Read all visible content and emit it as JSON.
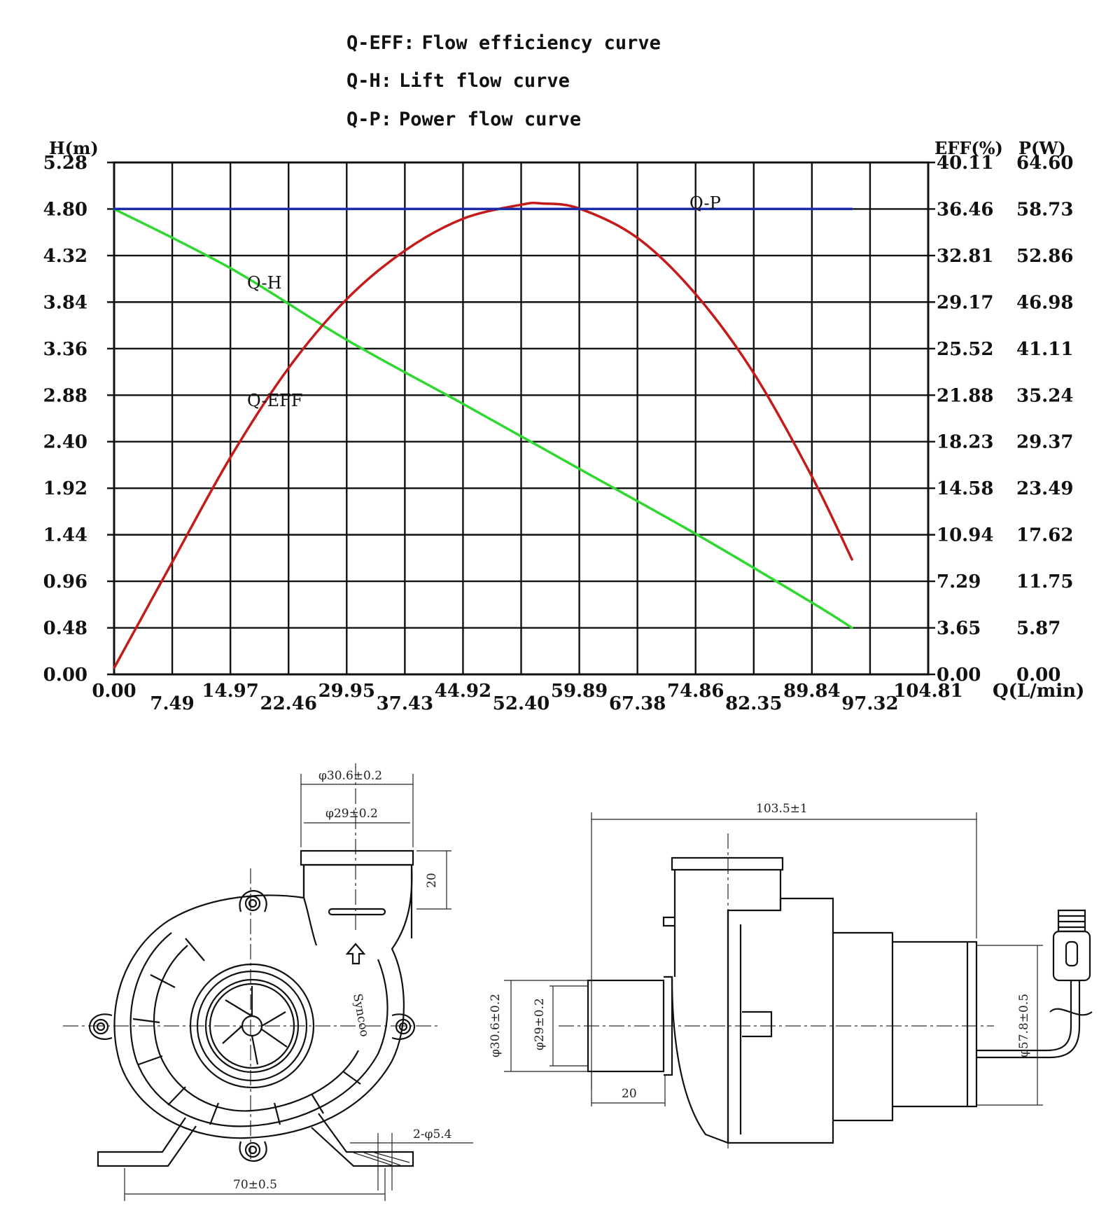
{
  "legend": [
    {
      "key": "Q-EFF",
      "sep": ":",
      "text": "Flow efficiency curve"
    },
    {
      "key": "Q-H",
      "sep": ":",
      "text": "Lift flow curve"
    },
    {
      "key": "Q-P",
      "sep": ":",
      "text": "Power flow curve"
    }
  ],
  "chart_data": {
    "type": "line",
    "xlabel": "Q(L/min)",
    "ylabel_left": "H(m)",
    "ylabel_right_1": "EFF(%)",
    "ylabel_right_2": "P(W)",
    "xlim": [
      0,
      104.81
    ],
    "ylim": [
      0,
      5.28
    ],
    "x_ticks": [
      "0.00",
      "7.49",
      "14.97",
      "22.46",
      "29.95",
      "37.43",
      "44.92",
      "52.40",
      "59.89",
      "67.38",
      "74.86",
      "82.35",
      "89.84",
      "97.32",
      "104.81"
    ],
    "y_ticks_left": [
      "0.00",
      "0.48",
      "0.96",
      "1.44",
      "1.92",
      "2.40",
      "2.88",
      "3.36",
      "3.84",
      "4.32",
      "4.80",
      "5.28"
    ],
    "y_ticks_eff": [
      "0.00",
      "3.65",
      "7.29",
      "10.94",
      "14.58",
      "18.23",
      "21.88",
      "25.52",
      "29.17",
      "32.81",
      "36.46",
      "40.11"
    ],
    "y_ticks_power": [
      "0.00",
      "5.87",
      "11.75",
      "17.62",
      "23.49",
      "29.37",
      "35.24",
      "41.11",
      "46.98",
      "52.86",
      "58.73",
      "64.60"
    ],
    "series": [
      {
        "name": "Q-H",
        "color": "#2ed82e",
        "axis": "H(m)",
        "x": [
          0,
          14.97,
          29.95,
          44.92,
          59.89,
          74.86,
          89.84,
          95.0
        ],
        "values": [
          4.8,
          4.19,
          3.45,
          2.79,
          2.12,
          1.45,
          0.74,
          0.48
        ]
      },
      {
        "name": "Q-EFF",
        "color": "#c41a1a",
        "axis": "EFF(%)",
        "x": [
          0,
          7.49,
          14.97,
          22.46,
          29.95,
          37.43,
          44.92,
          52.4,
          55.0,
          59.89,
          67.38,
          74.86,
          82.35,
          89.84,
          95.0
        ],
        "values": [
          0.5,
          8.8,
          17.0,
          24.0,
          29.4,
          33.2,
          35.7,
          36.8,
          36.9,
          36.5,
          34.2,
          29.8,
          23.6,
          15.5,
          9.0
        ]
      },
      {
        "name": "Q-P",
        "color": "#1a2aa8",
        "axis": "P(W)",
        "x": [
          0,
          95.0
        ],
        "values": [
          58.73,
          58.73
        ]
      }
    ]
  },
  "drawing": {
    "dims": {
      "outer_diameter": "φ30.6±0.2",
      "inner_diameter": "φ29±0.2",
      "inlet_length": "20",
      "mount_holes": "2-φ5.4",
      "mount_spacing": "70±0.5",
      "overall_length": "103.5±1",
      "side_outer_diameter": "φ30.6±0.2",
      "side_inner_diameter": "φ29±0.2",
      "side_inlet_length": "20",
      "motor_diameter": "φ57.8±0.5"
    }
  }
}
